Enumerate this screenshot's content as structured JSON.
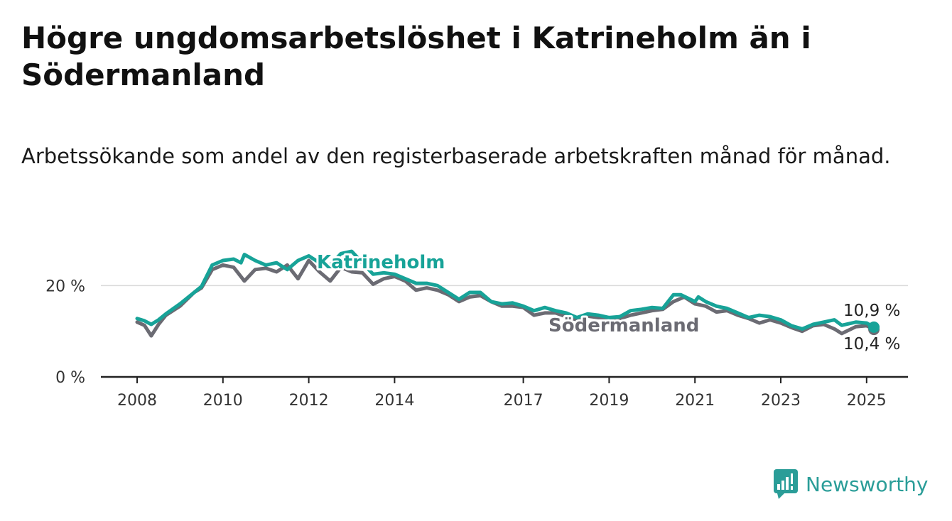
{
  "title": "Högre ungdomsarbetslöshet i Katrineholm än i Södermanland",
  "subtitle": "Arbetssökande som andel av den registerbaserade arbetskraften månad för månad.",
  "brand": "Newsworthy",
  "colors": {
    "katrineholm": "#17a398",
    "sodermanland": "#6b6b73",
    "axis": "#222222",
    "grid": "#d9d9d9",
    "brand": "#2a9d98"
  },
  "chart_data": {
    "type": "line",
    "x_unit": "year",
    "y_unit": "%",
    "ylim": [
      0,
      30
    ],
    "xlim": [
      2008,
      2026
    ],
    "y_ticks": [
      {
        "value": 0,
        "label": "0 %"
      },
      {
        "value": 20,
        "label": "20 %"
      }
    ],
    "x_ticks": [
      {
        "value": 2008,
        "label": "2008"
      },
      {
        "value": 2010,
        "label": "2010"
      },
      {
        "value": 2012,
        "label": "2012"
      },
      {
        "value": 2014,
        "label": "2014"
      },
      {
        "value": 2017,
        "label": "2017"
      },
      {
        "value": 2019,
        "label": "2019"
      },
      {
        "value": 2021,
        "label": "2021"
      },
      {
        "value": 2023,
        "label": "2023"
      },
      {
        "value": 2025,
        "label": "2025"
      }
    ],
    "grid": "horizontal",
    "series": [
      {
        "name": "Södermanland",
        "end_label": "10,4 %",
        "color": "#6b6b73",
        "points": [
          [
            2008.0,
            12.0
          ],
          [
            2008.17,
            11.3
          ],
          [
            2008.33,
            9.0
          ],
          [
            2008.5,
            11.5
          ],
          [
            2008.67,
            13.5
          ],
          [
            2009.0,
            15.5
          ],
          [
            2009.33,
            18.5
          ],
          [
            2009.5,
            19.5
          ],
          [
            2009.75,
            23.5
          ],
          [
            2010.0,
            24.5
          ],
          [
            2010.25,
            24.0
          ],
          [
            2010.5,
            21.0
          ],
          [
            2010.75,
            23.5
          ],
          [
            2011.0,
            23.8
          ],
          [
            2011.25,
            23.0
          ],
          [
            2011.5,
            24.5
          ],
          [
            2011.75,
            21.5
          ],
          [
            2012.0,
            25.5
          ],
          [
            2012.25,
            23.0
          ],
          [
            2012.5,
            21.0
          ],
          [
            2012.75,
            24.0
          ],
          [
            2013.0,
            23.0
          ],
          [
            2013.25,
            22.8
          ],
          [
            2013.5,
            20.3
          ],
          [
            2013.75,
            21.5
          ],
          [
            2014.0,
            22.0
          ],
          [
            2014.25,
            21.0
          ],
          [
            2014.5,
            19.0
          ],
          [
            2014.75,
            19.5
          ],
          [
            2015.0,
            19.0
          ],
          [
            2015.25,
            18.0
          ],
          [
            2015.5,
            16.5
          ],
          [
            2015.75,
            17.5
          ],
          [
            2016.0,
            17.8
          ],
          [
            2016.25,
            16.5
          ],
          [
            2016.5,
            15.5
          ],
          [
            2016.75,
            15.5
          ],
          [
            2017.0,
            15.2
          ],
          [
            2017.25,
            13.5
          ],
          [
            2017.5,
            14.0
          ],
          [
            2017.75,
            14.0
          ],
          [
            2018.0,
            13.2
          ],
          [
            2018.25,
            12.5
          ],
          [
            2018.5,
            13.3
          ],
          [
            2018.75,
            13.0
          ],
          [
            2019.0,
            13.0
          ],
          [
            2019.25,
            12.8
          ],
          [
            2019.5,
            13.5
          ],
          [
            2019.75,
            14.0
          ],
          [
            2020.0,
            14.5
          ],
          [
            2020.25,
            14.8
          ],
          [
            2020.5,
            16.5
          ],
          [
            2020.75,
            17.5
          ],
          [
            2021.0,
            16.0
          ],
          [
            2021.25,
            15.5
          ],
          [
            2021.5,
            14.2
          ],
          [
            2021.75,
            14.5
          ],
          [
            2022.0,
            13.5
          ],
          [
            2022.25,
            12.8
          ],
          [
            2022.5,
            11.8
          ],
          [
            2022.75,
            12.5
          ],
          [
            2023.0,
            11.8
          ],
          [
            2023.25,
            10.8
          ],
          [
            2023.5,
            10.0
          ],
          [
            2023.75,
            11.2
          ],
          [
            2024.0,
            11.5
          ],
          [
            2024.25,
            10.5
          ],
          [
            2024.42,
            9.5
          ],
          [
            2024.75,
            11.0
          ],
          [
            2025.0,
            11.2
          ],
          [
            2025.17,
            10.4
          ]
        ]
      },
      {
        "name": "Katrineholm",
        "end_label": "10,9 %",
        "color": "#17a398",
        "points": [
          [
            2008.0,
            12.8
          ],
          [
            2008.17,
            12.3
          ],
          [
            2008.33,
            11.5
          ],
          [
            2008.5,
            12.5
          ],
          [
            2008.67,
            13.8
          ],
          [
            2009.0,
            16.0
          ],
          [
            2009.33,
            18.5
          ],
          [
            2009.5,
            19.8
          ],
          [
            2009.75,
            24.5
          ],
          [
            2010.0,
            25.5
          ],
          [
            2010.25,
            25.8
          ],
          [
            2010.42,
            25.0
          ],
          [
            2010.5,
            26.8
          ],
          [
            2010.75,
            25.5
          ],
          [
            2011.0,
            24.5
          ],
          [
            2011.25,
            25.0
          ],
          [
            2011.5,
            23.5
          ],
          [
            2011.75,
            25.5
          ],
          [
            2012.0,
            26.5
          ],
          [
            2012.25,
            25.0
          ],
          [
            2012.5,
            24.5
          ],
          [
            2012.75,
            27.0
          ],
          [
            2013.0,
            27.5
          ],
          [
            2013.25,
            25.0
          ],
          [
            2013.5,
            22.5
          ],
          [
            2013.75,
            22.8
          ],
          [
            2014.0,
            22.5
          ],
          [
            2014.25,
            21.5
          ],
          [
            2014.5,
            20.5
          ],
          [
            2014.75,
            20.5
          ],
          [
            2015.0,
            20.0
          ],
          [
            2015.25,
            18.5
          ],
          [
            2015.5,
            17.0
          ],
          [
            2015.75,
            18.5
          ],
          [
            2016.0,
            18.5
          ],
          [
            2016.25,
            16.5
          ],
          [
            2016.5,
            16.0
          ],
          [
            2016.75,
            16.2
          ],
          [
            2017.0,
            15.5
          ],
          [
            2017.25,
            14.5
          ],
          [
            2017.5,
            15.2
          ],
          [
            2017.75,
            14.5
          ],
          [
            2018.0,
            14.0
          ],
          [
            2018.25,
            13.0
          ],
          [
            2018.5,
            13.8
          ],
          [
            2018.75,
            13.5
          ],
          [
            2019.0,
            13.0
          ],
          [
            2019.25,
            13.2
          ],
          [
            2019.5,
            14.5
          ],
          [
            2019.75,
            14.8
          ],
          [
            2020.0,
            15.2
          ],
          [
            2020.25,
            15.0
          ],
          [
            2020.5,
            18.0
          ],
          [
            2020.67,
            18.0
          ],
          [
            2021.0,
            16.5
          ],
          [
            2021.08,
            17.5
          ],
          [
            2021.25,
            16.5
          ],
          [
            2021.5,
            15.5
          ],
          [
            2021.75,
            15.0
          ],
          [
            2022.0,
            14.0
          ],
          [
            2022.25,
            13.0
          ],
          [
            2022.5,
            13.5
          ],
          [
            2022.75,
            13.2
          ],
          [
            2023.0,
            12.5
          ],
          [
            2023.25,
            11.2
          ],
          [
            2023.5,
            10.5
          ],
          [
            2023.75,
            11.5
          ],
          [
            2024.0,
            12.0
          ],
          [
            2024.25,
            12.5
          ],
          [
            2024.42,
            11.3
          ],
          [
            2024.75,
            12.0
          ],
          [
            2025.0,
            11.8
          ],
          [
            2025.17,
            10.9
          ]
        ]
      }
    ]
  }
}
